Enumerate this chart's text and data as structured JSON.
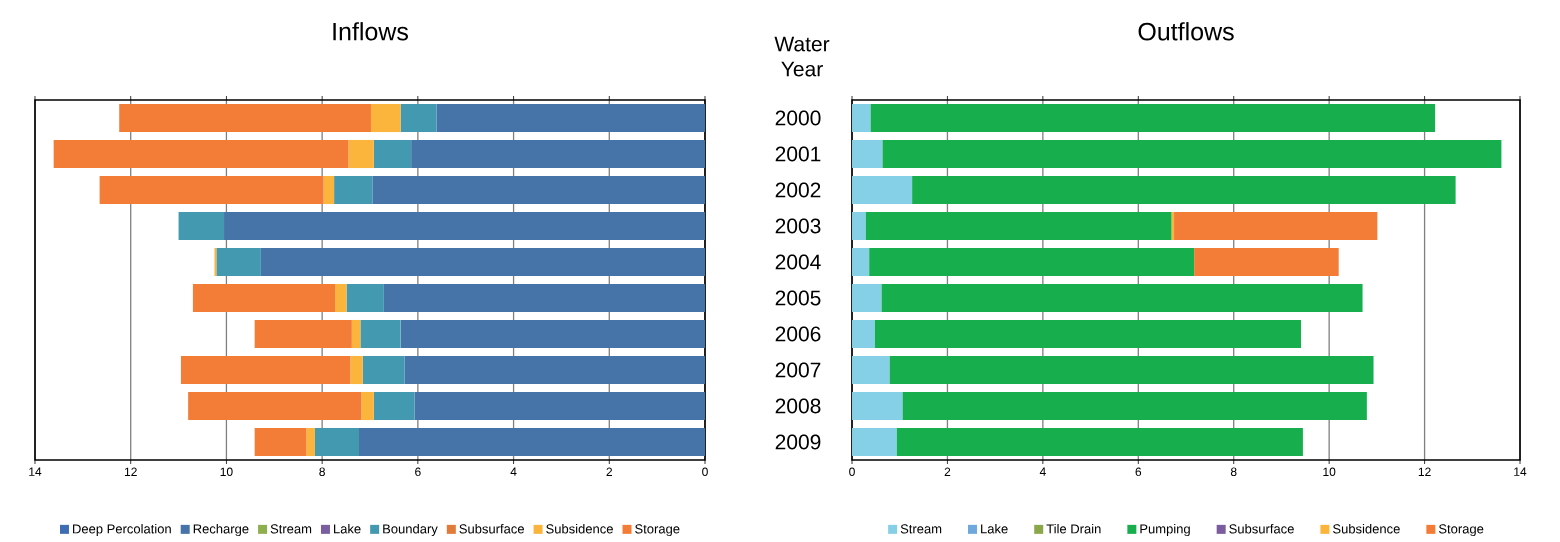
{
  "chart_data": [
    {
      "type": "bar",
      "title": "Inflows",
      "orientation": "horizontal",
      "stacked": true,
      "grid": "x",
      "legend": "bottom",
      "tick_labels": "x",
      "categories": [
        "2000",
        "2001",
        "2002",
        "2003",
        "2004",
        "2005",
        "2006",
        "2007",
        "2008",
        "2009"
      ],
      "xlim": [
        14,
        0
      ],
      "xticks": [
        14,
        12,
        10,
        8,
        6,
        4,
        2,
        0
      ],
      "series": [
        {
          "name": "Deep Percolation",
          "color": "#3e6db4",
          "values": [
            null,
            null,
            null,
            null,
            null,
            null,
            null,
            null,
            null,
            null
          ]
        },
        {
          "name": "Recharge",
          "color": "#4674a8",
          "values": [
            5.61,
            6.14,
            6.95,
            10.05,
            9.28,
            6.71,
            6.36,
            6.28,
            6.07,
            7.23
          ]
        },
        {
          "name": "Stream",
          "color": "#8db04d",
          "values": [
            null,
            null,
            null,
            null,
            null,
            null,
            null,
            null,
            null,
            null
          ]
        },
        {
          "name": "Lake",
          "color": "#7a5ea0",
          "values": [
            null,
            null,
            null,
            null,
            null,
            null,
            null,
            null,
            null,
            null
          ]
        },
        {
          "name": "Boundary",
          "color": "#4399b0",
          "values": [
            0.75,
            0.78,
            0.8,
            0.95,
            0.93,
            0.78,
            0.84,
            0.87,
            0.85,
            0.92
          ]
        },
        {
          "name": "Subsurface",
          "color": "#e07b39",
          "values": [
            null,
            null,
            null,
            null,
            null,
            null,
            null,
            null,
            null,
            null
          ]
        },
        {
          "name": "Subsidence",
          "color": "#fbb53d",
          "values": [
            0.62,
            0.53,
            0.22,
            null,
            0.04,
            0.24,
            0.18,
            0.26,
            0.26,
            0.18
          ]
        },
        {
          "name": "Storage",
          "color": "#f37c36",
          "values": [
            5.26,
            6.16,
            4.68,
            null,
            null,
            2.97,
            2.03,
            3.54,
            3.62,
            1.08
          ]
        }
      ]
    },
    {
      "type": "bar",
      "title": "Outflows",
      "ylabel": "Water Year",
      "orientation": "horizontal",
      "stacked": true,
      "grid": "x",
      "legend": "bottom",
      "categories": [
        "2000",
        "2001",
        "2002",
        "2003",
        "2004",
        "2005",
        "2006",
        "2007",
        "2008",
        "2009"
      ],
      "xlim": [
        0,
        14
      ],
      "xticks": [
        0,
        2,
        4,
        6,
        8,
        10,
        12,
        14
      ],
      "series": [
        {
          "name": "Stream",
          "color": "#85d0e6",
          "values": [
            0.39,
            0.64,
            1.26,
            0.29,
            0.36,
            0.62,
            0.48,
            0.79,
            1.06,
            0.94
          ]
        },
        {
          "name": "Lake",
          "color": "#6fa8dc",
          "values": [
            null,
            null,
            null,
            null,
            null,
            null,
            null,
            null,
            null,
            null
          ]
        },
        {
          "name": "Tile Drain",
          "color": "#8aa84a",
          "values": [
            null,
            null,
            null,
            null,
            null,
            null,
            null,
            null,
            null,
            null
          ]
        },
        {
          "name": "Pumping",
          "color": "#17ae4d",
          "values": [
            11.83,
            12.97,
            11.39,
            6.41,
            6.81,
            10.08,
            8.93,
            10.14,
            9.73,
            8.51
          ]
        },
        {
          "name": "Subsurface",
          "color": "#7b5c9e",
          "values": [
            null,
            null,
            null,
            null,
            null,
            null,
            null,
            null,
            null,
            null
          ]
        },
        {
          "name": "Subsidence",
          "color": "#fbb53d",
          "values": [
            null,
            null,
            null,
            0.05,
            null,
            null,
            null,
            null,
            null,
            null
          ]
        },
        {
          "name": "Storage",
          "color": "#f37c36",
          "values": [
            null,
            null,
            null,
            4.26,
            3.03,
            null,
            null,
            null,
            null,
            null
          ]
        }
      ]
    }
  ]
}
